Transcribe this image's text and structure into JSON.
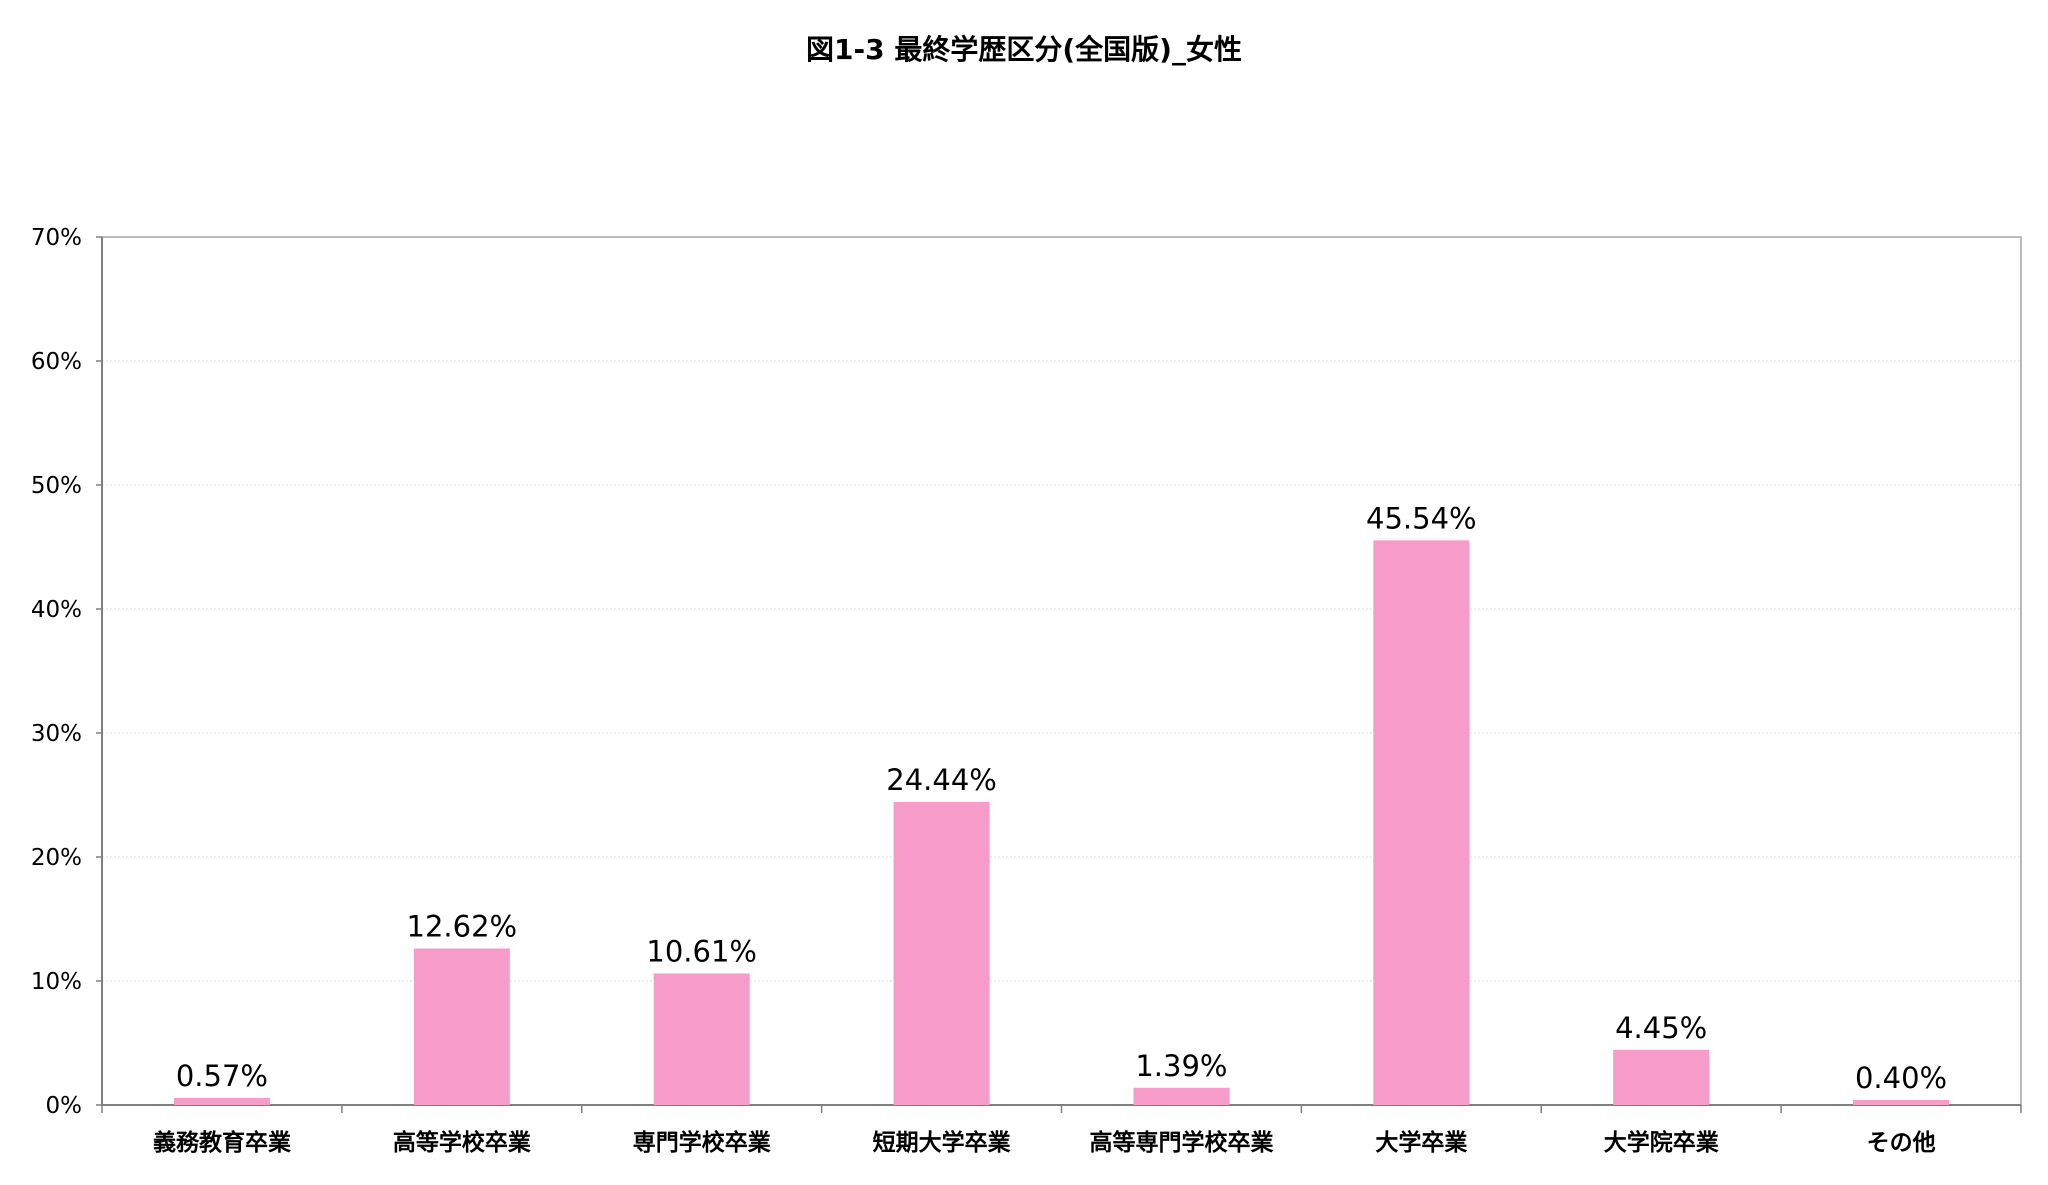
{
  "chart_data": {
    "type": "bar",
    "title": "図1-3 最終学歴区分(全国版)_女性",
    "xlabel": "",
    "ylabel": "",
    "categories": [
      "義務教育卒業",
      "高等学校卒業",
      "専門学校卒業",
      "短期大学卒業",
      "高等専門学校卒業",
      "大学卒業",
      "大学院卒業",
      "その他"
    ],
    "values": [
      0.57,
      12.62,
      10.61,
      24.44,
      1.39,
      45.54,
      4.45,
      0.4
    ],
    "value_labels": [
      "0.57%",
      "12.62%",
      "10.61%",
      "24.44%",
      "1.39%",
      "45.54%",
      "4.45%",
      "0.40%"
    ],
    "ylim": [
      0,
      70
    ],
    "yticks": [
      0,
      10,
      20,
      30,
      40,
      50,
      60,
      70
    ],
    "ytick_labels": [
      "0%",
      "10%",
      "20%",
      "30%",
      "40%",
      "50%",
      "60%",
      "70%"
    ],
    "grid": true,
    "legend": "none",
    "colors": {
      "bar": "#f79bc8",
      "grid": "#d8d8d8",
      "axis": "#7f7f7f",
      "plot_border": "#a6a6a6"
    }
  }
}
